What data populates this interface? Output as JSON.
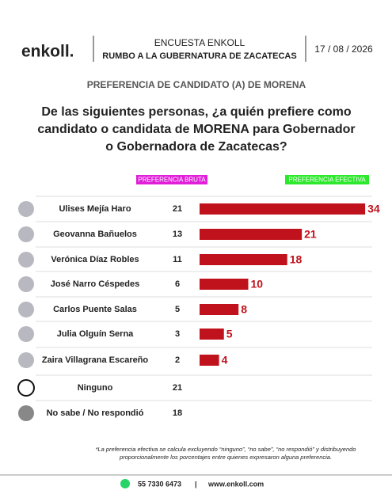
{
  "header": {
    "brand": "enkoll.",
    "survey": "ENCUESTA ENKOLL",
    "race": "RUMBO A LA GUBERNATURA DE ZACATECAS",
    "date": "17 / 08 / 2026"
  },
  "chart_data": {
    "type": "hbar",
    "subtitle": "PREFERENCIA DE CANDIDATO (A) DE MORENA",
    "title": [
      "De las siguientes personas, ¿a quién prefiere como",
      "candidato o candidata de MORENA para Gobernador",
      "o Gobernadora de Zacatecas?"
    ],
    "raw_header": "PREFERENCIA BRUTA",
    "raw_header_color": "#e020d8",
    "effective_header": "PREFERENCIA EFECTIVA",
    "effective_header_color": "#2ee82e",
    "categories": [
      "Ulises Mejía Haro",
      "Geovanna Bañuelos",
      "Verónica Díaz Robles",
      "José Narro Céspedes",
      "Carlos Puente Salas",
      "Julia Olguín Serna",
      "Zaira Villagrana Escareño",
      "Ninguno",
      "No sabe / No respondió"
    ],
    "raw_values": [
      21,
      13,
      11,
      6,
      5,
      3,
      2,
      21,
      18
    ],
    "values": [
      34,
      21,
      18,
      10,
      8,
      5,
      4,
      null,
      null
    ],
    "color": "#c0121c",
    "footnote": [
      "*La preferencia efectiva se calcula excluyendo “ninguno”, “no sabe”, “no respondió” y distribuyendo",
      "proporcionalmente los porcentajes entre quienes expresaron alguna preferencia."
    ]
  },
  "footer": {
    "phone": "55 7330 6473",
    "separator": "|",
    "web": "www.enkoll.com"
  }
}
